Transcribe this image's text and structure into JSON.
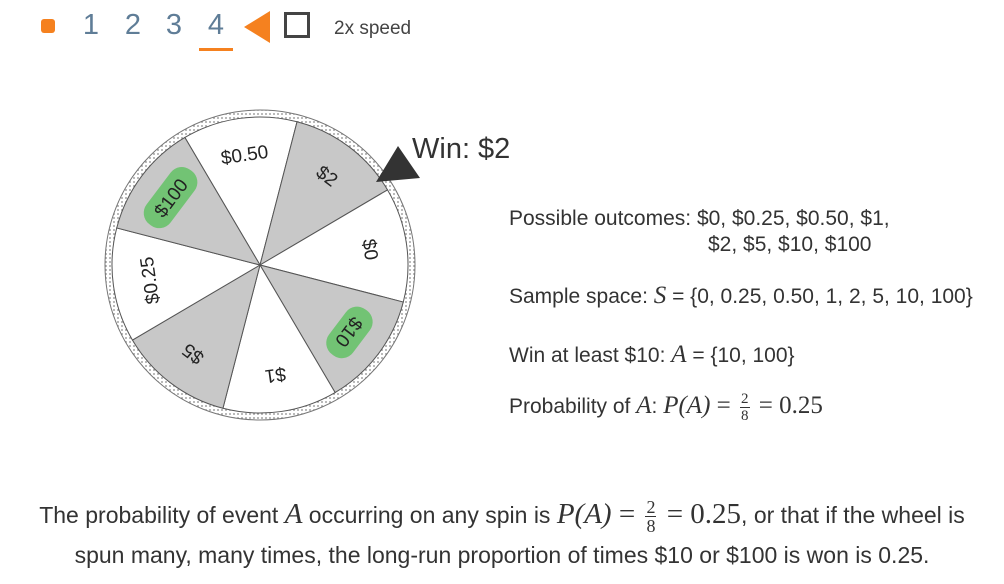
{
  "controls": {
    "steps": [
      "1",
      "2",
      "3",
      "4"
    ],
    "active_step": "4",
    "speed_label": "2x speed",
    "accent_color": "#f5811f"
  },
  "wheel": {
    "segments": [
      {
        "label": "$0.50",
        "shaded": false,
        "highlight": false
      },
      {
        "label": "$2",
        "shaded": true,
        "highlight": false
      },
      {
        "label": "$0",
        "shaded": false,
        "highlight": false
      },
      {
        "label": "$10",
        "shaded": true,
        "highlight": true
      },
      {
        "label": "$1",
        "shaded": false,
        "highlight": false
      },
      {
        "label": "$5",
        "shaded": true,
        "highlight": false
      },
      {
        "label": "$0.25",
        "shaded": false,
        "highlight": false
      },
      {
        "label": "$100",
        "shaded": true,
        "highlight": true
      }
    ],
    "colors": {
      "shaded": "#c8c8c8",
      "plain": "#ffffff",
      "highlight": "#72c374"
    },
    "result_label": "Win: $2"
  },
  "info": {
    "outcomes_label": "Possible outcomes: ",
    "outcomes_line1": "$0, $0.25, $0.50, $1,",
    "outcomes_line2": "$2, $5, $10, $100",
    "sample_label": "Sample space: ",
    "sample_var": "S",
    "sample_value": " = {0, 0.25, 0.50, 1, 2, 5, 10, 100}",
    "event_label": "Win at least $10: ",
    "event_var": "A",
    "event_value": " = {10, 100}",
    "prob_label": "Probability of ",
    "prob_var": "A",
    "prob_colon": ": ",
    "prob_expr_p": "P",
    "prob_expr_a": "(A)",
    "prob_eq": " = ",
    "prob_num": "2",
    "prob_den": "8",
    "prob_result": " = 0.25"
  },
  "summary": {
    "part1": "The probability of event ",
    "var": "A",
    "part2": " occurring on any spin is ",
    "p": "P",
    "pa": "(A)",
    "eq": " = ",
    "num": "2",
    "den": "8",
    "result": " = 0.25",
    "part3": ", or that if the wheel is",
    "line2": "spun many, many times, the long-run proportion of times $10 or $100 is won is 0.25."
  }
}
